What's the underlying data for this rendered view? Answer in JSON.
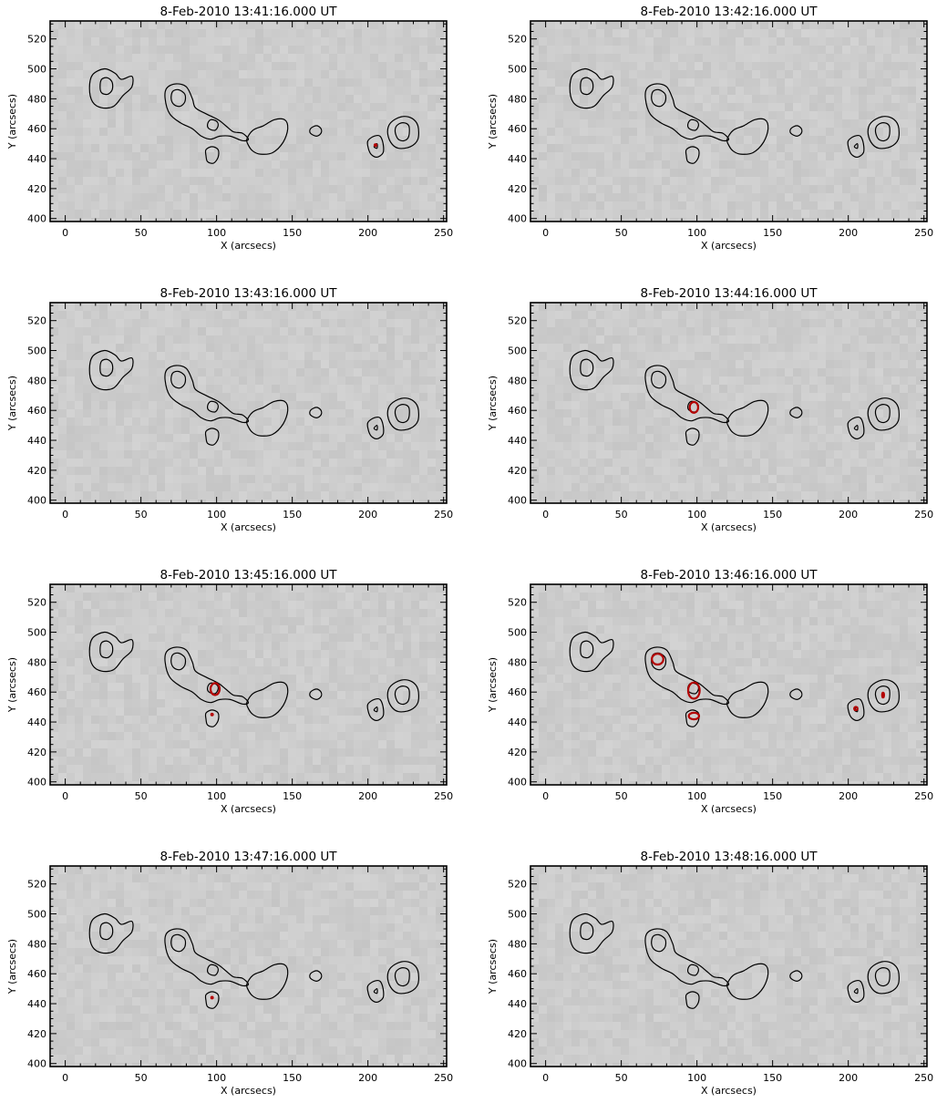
{
  "chart_data": {
    "type": "contour",
    "colors": {
      "background": "#cccccc",
      "contour_base": "#000000",
      "contour_highlight": "#b40000"
    },
    "panels": [
      {
        "title": "8-Feb-2010 13:41:16.000 UT",
        "xlabel": "X (arcsecs)",
        "ylabel": "Y (arcsecs)",
        "xlim": [
          -10,
          252
        ],
        "ylim": [
          398,
          532
        ],
        "xticks": [
          0,
          50,
          100,
          150,
          200,
          250
        ],
        "yticks": [
          400,
          420,
          440,
          460,
          480,
          500,
          520
        ],
        "red_contours": [
          {
            "x": 205,
            "y": 449,
            "rx": 0.6,
            "ry": 0.6
          }
        ]
      },
      {
        "title": "8-Feb-2010 13:42:16.000 UT",
        "xlabel": "X (arcsecs)",
        "ylabel": "Y (arcsecs)",
        "xlim": [
          -10,
          252
        ],
        "ylim": [
          398,
          532
        ],
        "xticks": [
          0,
          50,
          100,
          150,
          200,
          250
        ],
        "yticks": [
          400,
          420,
          440,
          460,
          480,
          500,
          520
        ],
        "red_contours": []
      },
      {
        "title": "8-Feb-2010 13:43:16.000 UT",
        "xlabel": "X (arcsecs)",
        "ylabel": "Y (arcsecs)",
        "xlim": [
          -10,
          252
        ],
        "ylim": [
          398,
          532
        ],
        "xticks": [
          0,
          50,
          100,
          150,
          200,
          250
        ],
        "yticks": [
          400,
          420,
          440,
          460,
          480,
          500,
          520
        ],
        "red_contours": []
      },
      {
        "title": "8-Feb-2010 13:44:16.000 UT",
        "xlabel": "X (arcsecs)",
        "ylabel": "Y (arcsecs)",
        "xlim": [
          -10,
          252
        ],
        "ylim": [
          398,
          532
        ],
        "xticks": [
          0,
          50,
          100,
          150,
          200,
          250
        ],
        "yticks": [
          400,
          420,
          440,
          460,
          480,
          500,
          520
        ],
        "red_contours": [
          {
            "x": 98,
            "y": 462,
            "rx": 2.8,
            "ry": 3.6
          }
        ]
      },
      {
        "title": "8-Feb-2010 13:45:16.000 UT",
        "xlabel": "X (arcsecs)",
        "ylabel": "Y (arcsecs)",
        "xlim": [
          -10,
          252
        ],
        "ylim": [
          398,
          532
        ],
        "xticks": [
          0,
          50,
          100,
          150,
          200,
          250
        ],
        "yticks": [
          400,
          420,
          440,
          460,
          480,
          500,
          520
        ],
        "red_contours": [
          {
            "x": 99,
            "y": 462,
            "rx": 3,
            "ry": 4
          },
          {
            "x": 97,
            "y": 445,
            "rx": 0.5,
            "ry": 0.5
          }
        ]
      },
      {
        "title": "8-Feb-2010 13:46:16.000 UT",
        "xlabel": "X (arcsecs)",
        "ylabel": "Y (arcsecs)",
        "xlim": [
          -10,
          252
        ],
        "ylim": [
          398,
          532
        ],
        "xticks": [
          0,
          50,
          100,
          150,
          200,
          250
        ],
        "yticks": [
          400,
          420,
          440,
          460,
          480,
          500,
          520
        ],
        "red_contours": [
          {
            "x": 74,
            "y": 482,
            "rx": 3.8,
            "ry": 3.6
          },
          {
            "x": 98,
            "y": 461,
            "rx": 3.8,
            "ry": 5.4
          },
          {
            "x": 98,
            "y": 444,
            "rx": 3.4,
            "ry": 2.2
          },
          {
            "x": 205,
            "y": 449,
            "rx": 1.1,
            "ry": 1.1
          },
          {
            "x": 223,
            "y": 458,
            "rx": 0.6,
            "ry": 1.6
          }
        ]
      },
      {
        "title": "8-Feb-2010 13:47:16.000 UT",
        "xlabel": "X (arcsecs)",
        "ylabel": "Y (arcsecs)",
        "xlim": [
          -10,
          252
        ],
        "ylim": [
          398,
          532
        ],
        "xticks": [
          0,
          50,
          100,
          150,
          200,
          250
        ],
        "yticks": [
          400,
          420,
          440,
          460,
          480,
          500,
          520
        ],
        "red_contours": [
          {
            "x": 97,
            "y": 444,
            "rx": 0.5,
            "ry": 0.5
          }
        ]
      },
      {
        "title": "8-Feb-2010 13:48:16.000 UT",
        "xlabel": "X (arcsecs)",
        "ylabel": "Y (arcsecs)",
        "xlim": [
          -10,
          252
        ],
        "ylim": [
          398,
          532
        ],
        "xticks": [
          0,
          50,
          100,
          150,
          200,
          250
        ],
        "yticks": [
          400,
          420,
          440,
          460,
          480,
          500,
          520
        ],
        "red_contours": []
      }
    ],
    "base_contours": [
      {
        "name": "region-a-outer",
        "points": [
          [
            16,
            487
          ],
          [
            18,
            496
          ],
          [
            26,
            500
          ],
          [
            33,
            497
          ],
          [
            37,
            493
          ],
          [
            44,
            495
          ],
          [
            44,
            488
          ],
          [
            38,
            482
          ],
          [
            32,
            475
          ],
          [
            24,
            474
          ],
          [
            18,
            478
          ]
        ]
      },
      {
        "name": "region-a-inner",
        "points": [
          [
            23,
            488
          ],
          [
            24,
            493
          ],
          [
            28,
            494
          ],
          [
            31,
            491
          ],
          [
            31,
            486
          ],
          [
            28,
            483
          ],
          [
            24,
            484
          ]
        ]
      },
      {
        "name": "region-b-outer",
        "points": [
          [
            66,
            480
          ],
          [
            67,
            487
          ],
          [
            73,
            490
          ],
          [
            80,
            488
          ],
          [
            84,
            480
          ],
          [
            86,
            474
          ],
          [
            93,
            470
          ],
          [
            101,
            466
          ],
          [
            106,
            462
          ],
          [
            111,
            458
          ],
          [
            117,
            457
          ],
          [
            121,
            453
          ],
          [
            117,
            452
          ],
          [
            109,
            455
          ],
          [
            102,
            455
          ],
          [
            96,
            453
          ],
          [
            90,
            455
          ],
          [
            84,
            460
          ],
          [
            76,
            464
          ],
          [
            69,
            470
          ]
        ]
      },
      {
        "name": "region-b-inner",
        "points": [
          [
            70,
            480
          ],
          [
            71,
            485
          ],
          [
            75,
            486
          ],
          [
            79,
            483
          ],
          [
            79,
            478
          ],
          [
            76,
            475
          ],
          [
            72,
            476
          ]
        ]
      },
      {
        "name": "region-b-inner2",
        "points": [
          [
            94,
            463
          ],
          [
            96,
            466
          ],
          [
            100,
            465
          ],
          [
            101,
            462
          ],
          [
            99,
            459
          ],
          [
            95,
            460
          ]
        ]
      },
      {
        "name": "region-c",
        "points": [
          [
            120,
            453
          ],
          [
            124,
            459
          ],
          [
            131,
            462
          ],
          [
            138,
            466
          ],
          [
            145,
            466
          ],
          [
            147,
            460
          ],
          [
            144,
            451
          ],
          [
            137,
            444
          ],
          [
            129,
            443
          ],
          [
            124,
            445
          ],
          [
            121,
            449
          ]
        ]
      },
      {
        "name": "region-d",
        "points": [
          [
            93,
            442
          ],
          [
            93,
            446
          ],
          [
            97,
            448
          ],
          [
            101,
            446
          ],
          [
            101,
            441
          ],
          [
            98,
            437
          ],
          [
            94,
            438
          ]
        ]
      },
      {
        "name": "region-e",
        "points": [
          [
            162,
            457
          ],
          [
            162,
            460
          ],
          [
            166,
            462
          ],
          [
            169,
            460
          ],
          [
            169,
            457
          ],
          [
            166,
            455
          ]
        ]
      },
      {
        "name": "region-f-outer",
        "points": [
          [
            200,
            448
          ],
          [
            200,
            452
          ],
          [
            204,
            455
          ],
          [
            208,
            455
          ],
          [
            210,
            450
          ],
          [
            210,
            444
          ],
          [
            206,
            441
          ],
          [
            202,
            443
          ]
        ]
      },
      {
        "name": "region-f-inner",
        "points": [
          [
            204,
            448
          ],
          [
            206,
            450
          ],
          [
            206,
            447
          ]
        ]
      },
      {
        "name": "region-g-outer",
        "points": [
          [
            213,
            458
          ],
          [
            215,
            464
          ],
          [
            222,
            468
          ],
          [
            229,
            467
          ],
          [
            233,
            462
          ],
          [
            233,
            453
          ],
          [
            228,
            448
          ],
          [
            220,
            447
          ],
          [
            215,
            451
          ]
        ]
      },
      {
        "name": "region-g-inner",
        "points": [
          [
            218,
            458
          ],
          [
            219,
            462
          ],
          [
            223,
            464
          ],
          [
            227,
            462
          ],
          [
            227,
            455
          ],
          [
            224,
            452
          ],
          [
            220,
            453
          ]
        ]
      }
    ]
  }
}
